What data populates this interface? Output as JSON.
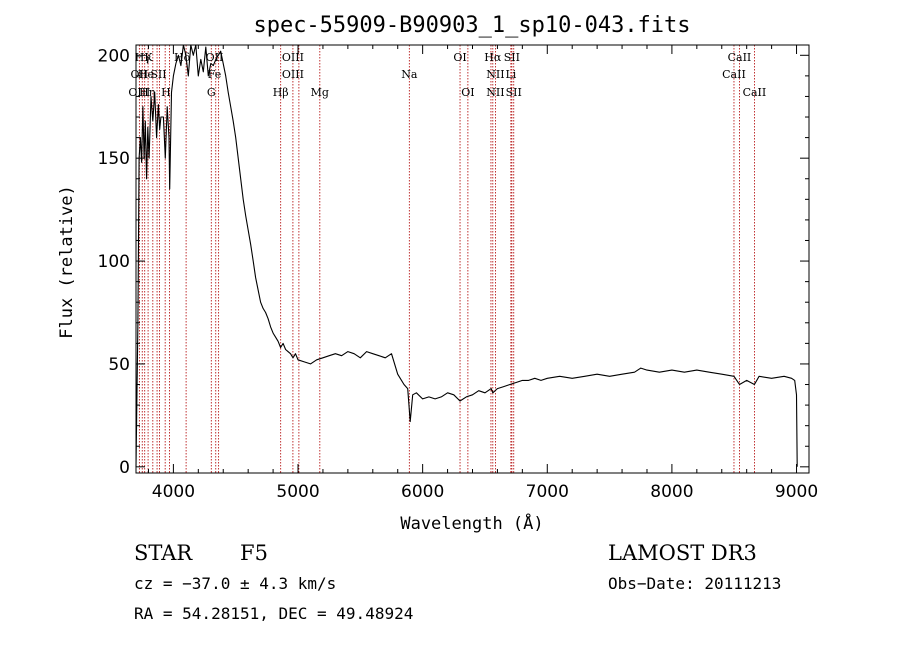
{
  "chart_data": {
    "type": "line",
    "title": "spec-55909-B90903_1_sp10-043.fits",
    "xlabel": "Wavelength (Å)",
    "ylabel": "Flux (relative)",
    "xlim": [
      3700,
      9100
    ],
    "ylim": [
      -3,
      205
    ],
    "x_ticks": [
      4000,
      5000,
      6000,
      7000,
      8000,
      9000
    ],
    "y_ticks": [
      0,
      50,
      100,
      150,
      200
    ],
    "series": [
      {
        "x": [
          3700,
          3715,
          3725,
          3735,
          3745,
          3755,
          3765,
          3775,
          3785,
          3795,
          3805,
          3820,
          3835,
          3850,
          3865,
          3880,
          3890,
          3900,
          3920,
          3935,
          3950,
          3965,
          3970,
          3985,
          4000,
          4020,
          4040,
          4060,
          4080,
          4100,
          4120,
          4140,
          4160,
          4180,
          4200,
          4220,
          4240,
          4260,
          4280,
          4300,
          4320,
          4340,
          4360,
          4380,
          4400,
          4420,
          4440,
          4460,
          4480,
          4500,
          4520,
          4540,
          4560,
          4580,
          4600,
          4620,
          4640,
          4660,
          4680,
          4700,
          4720,
          4740,
          4760,
          4780,
          4800,
          4820,
          4840,
          4860,
          4880,
          4900,
          4920,
          4940,
          4960,
          4980,
          5000,
          5050,
          5100,
          5150,
          5200,
          5250,
          5300,
          5350,
          5400,
          5450,
          5500,
          5550,
          5600,
          5650,
          5700,
          5750,
          5800,
          5850,
          5880,
          5900,
          5920,
          5950,
          6000,
          6050,
          6100,
          6150,
          6200,
          6250,
          6300,
          6350,
          6400,
          6450,
          6500,
          6550,
          6563,
          6600,
          6650,
          6700,
          6750,
          6800,
          6850,
          6900,
          6950,
          7000,
          7100,
          7200,
          7300,
          7400,
          7500,
          7600,
          7700,
          7750,
          7800,
          7900,
          8000,
          8100,
          8200,
          8300,
          8400,
          8498,
          8542,
          8600,
          8662,
          8700,
          8800,
          8900,
          8960,
          8985,
          9000,
          9005
        ],
        "y": [
          0,
          70,
          150,
          160,
          148,
          175,
          150,
          168,
          140,
          165,
          150,
          180,
          168,
          182,
          160,
          176,
          164,
          170,
          170,
          150,
          175,
          160,
          135,
          182,
          190,
          196,
          200,
          195,
          205,
          200,
          190,
          205,
          200,
          205,
          190,
          198,
          192,
          204,
          190,
          196,
          195,
          198,
          200,
          202,
          196,
          190,
          182,
          175,
          168,
          160,
          150,
          140,
          130,
          122,
          115,
          108,
          100,
          92,
          86,
          80,
          77,
          75,
          72,
          68,
          65,
          63,
          61,
          58,
          60,
          57,
          56,
          55,
          53,
          55,
          52,
          51,
          50,
          52,
          53,
          54,
          55,
          54,
          56,
          55,
          53,
          56,
          55,
          54,
          53,
          55,
          45,
          40,
          38,
          22,
          35,
          36,
          33,
          34,
          33,
          34,
          36,
          35,
          32,
          34,
          35,
          37,
          36,
          38,
          36,
          38,
          39,
          40,
          41,
          42,
          42,
          43,
          42,
          43,
          44,
          43,
          44,
          45,
          44,
          45,
          46,
          48,
          47,
          46,
          47,
          46,
          47,
          46,
          45,
          44,
          40,
          42,
          40,
          44,
          43,
          44,
          43,
          42,
          35,
          0
        ]
      }
    ],
    "annotations": [
      {
        "label": "Hγ",
        "x": 3755,
        "row": 1
      },
      {
        "label": "K",
        "x": 3800,
        "row": 1
      },
      {
        "label": "Hδ",
        "x": 4070,
        "row": 1
      },
      {
        "label": "OII",
        "x": 4330,
        "row": 1
      },
      {
        "label": "OIII",
        "x": 4959,
        "row": 1
      },
      {
        "label": "OI",
        "x": 6300,
        "row": 1
      },
      {
        "label": "Hα",
        "x": 6563,
        "row": 1
      },
      {
        "label": "SII",
        "x": 6716,
        "row": 1
      },
      {
        "label": "CaII",
        "x": 8542,
        "row": 1
      },
      {
        "label": "OII",
        "x": 3727,
        "row": 2
      },
      {
        "label": "He",
        "x": 3780,
        "row": 2
      },
      {
        "label": "SII",
        "x": 3880,
        "row": 2
      },
      {
        "label": "Fe",
        "x": 4330,
        "row": 2
      },
      {
        "label": "OIII",
        "x": 4959,
        "row": 2
      },
      {
        "label": "Na",
        "x": 5893,
        "row": 2
      },
      {
        "label": "NII",
        "x": 6584,
        "row": 2
      },
      {
        "label": "Li",
        "x": 6708,
        "row": 2
      },
      {
        "label": "CaII",
        "x": 8498,
        "row": 2
      },
      {
        "label": "OIII",
        "x": 3727,
        "row": 3
      },
      {
        "label": "Hη",
        "x": 3790,
        "row": 3
      },
      {
        "label": "H",
        "x": 3940,
        "row": 3
      },
      {
        "label": "G",
        "x": 4304,
        "row": 3
      },
      {
        "label": "Hβ",
        "x": 4861,
        "row": 3
      },
      {
        "label": "Mg",
        "x": 5175,
        "row": 3
      },
      {
        "label": "OI",
        "x": 6363,
        "row": 3
      },
      {
        "label": "NII",
        "x": 6584,
        "row": 3
      },
      {
        "label": "SII",
        "x": 6731,
        "row": 3
      },
      {
        "label": "CaII",
        "x": 8662,
        "row": 3
      }
    ],
    "line_markers": [
      3727,
      3750,
      3770,
      3797,
      3835,
      3869,
      3889,
      3934,
      3969,
      4102,
      4304,
      4340,
      4363,
      4861,
      4959,
      5007,
      5175,
      5893,
      6300,
      6363,
      6548,
      6563,
      6584,
      6708,
      6716,
      6731,
      8498,
      8542,
      8662
    ]
  },
  "info": {
    "object_type": "STAR",
    "subclass": "F5",
    "survey": "LAMOST DR3",
    "cz": "cz = −37.0 ± 4.3 km/s",
    "obs_date": "Obs−Date: 20111213",
    "coords": "RA =  54.28151, DEC =  49.48924"
  }
}
